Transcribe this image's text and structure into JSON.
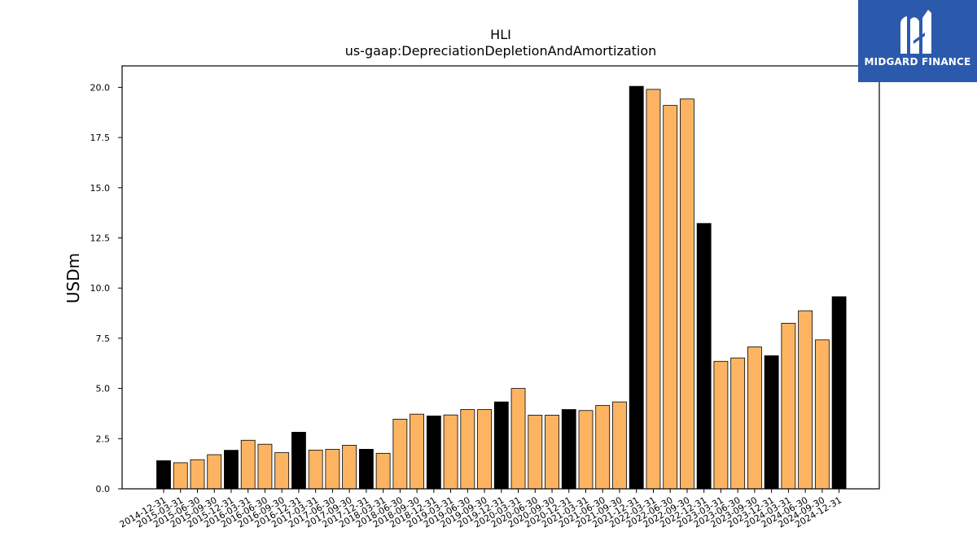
{
  "brand": {
    "name": "MIDGARD FINANCE",
    "logo_icon": "midgard-m-logo-icon",
    "background_color": "#2b5aad"
  },
  "colors": {
    "highlight_bar": "#000000",
    "normal_bar": "#fdb462",
    "bar_edge": "#000000"
  },
  "chart_data": {
    "type": "bar",
    "title": "HLI",
    "subtitle": "us-gaap:DepreciationDepletionAndAmortization",
    "xlabel": "",
    "ylabel": "USDm",
    "ylim": [
      0,
      21.07
    ],
    "yticks": [
      "0.0",
      "2.5",
      "5.0",
      "7.5",
      "10.0",
      "12.5",
      "15.0",
      "17.5",
      "20.0"
    ],
    "grid": false,
    "categories": [
      "2014-12-31",
      "2015-03-31",
      "2015-06-30",
      "2015-09-30",
      "2015-12-31",
      "2016-03-31",
      "2016-06-30",
      "2016-09-30",
      "2016-12-31",
      "2017-03-31",
      "2017-06-30",
      "2017-09-30",
      "2017-12-31",
      "2018-03-31",
      "2018-06-30",
      "2018-09-30",
      "2018-12-31",
      "2019-03-31",
      "2019-06-30",
      "2019-09-30",
      "2019-12-31",
      "2020-03-31",
      "2020-06-30",
      "2020-09-30",
      "2020-12-31",
      "2021-03-31",
      "2021-06-30",
      "2021-09-30",
      "2021-12-31",
      "2022-03-31",
      "2022-06-30",
      "2022-09-30",
      "2022-12-31",
      "2023-03-31",
      "2023-06-30",
      "2023-09-30",
      "2023-12-31",
      "2024-03-31",
      "2024-06-30",
      "2024-09-30",
      "2024-12-31"
    ],
    "values": [
      1.4,
      1.3,
      1.45,
      1.7,
      1.92,
      2.42,
      2.22,
      1.8,
      2.82,
      1.93,
      1.97,
      2.17,
      1.97,
      1.77,
      3.47,
      3.72,
      3.63,
      3.68,
      3.95,
      3.95,
      4.33,
      5.0,
      3.67,
      3.67,
      3.95,
      3.9,
      4.15,
      4.33,
      20.05,
      19.9,
      19.1,
      19.42,
      13.22,
      6.35,
      6.52,
      7.07,
      6.63,
      8.25,
      8.87,
      7.42,
      9.57
    ],
    "year_end": [
      true,
      false,
      false,
      false,
      true,
      false,
      false,
      false,
      true,
      false,
      false,
      false,
      true,
      false,
      false,
      false,
      true,
      false,
      false,
      false,
      true,
      false,
      false,
      false,
      true,
      false,
      false,
      false,
      true,
      false,
      false,
      false,
      true,
      false,
      false,
      false,
      true,
      false,
      false,
      false,
      true
    ]
  }
}
